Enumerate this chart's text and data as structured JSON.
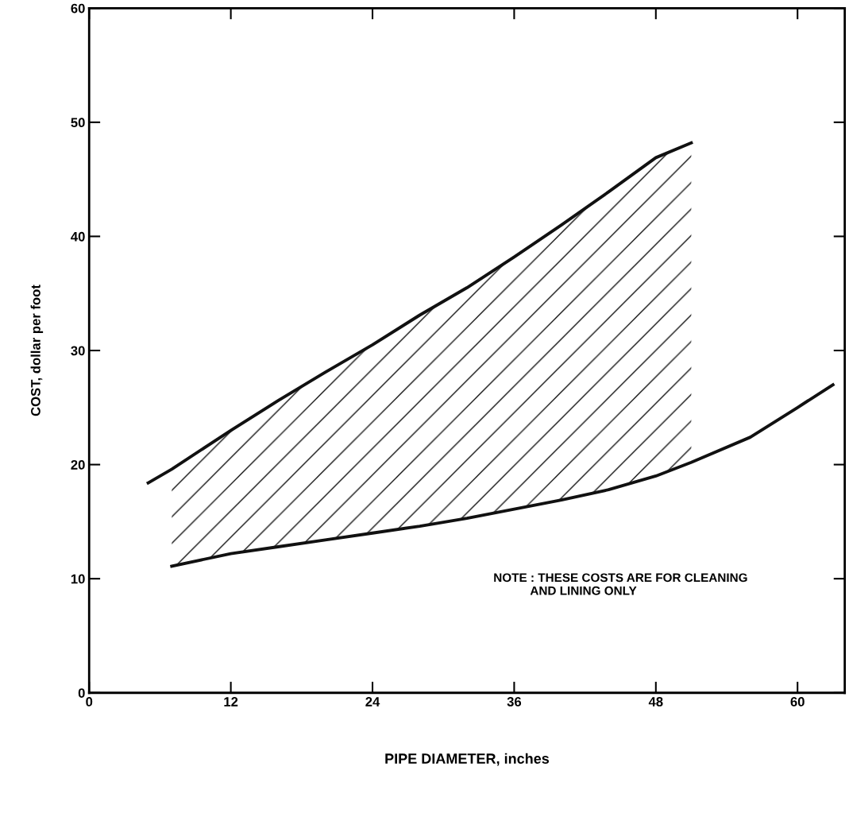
{
  "chart_data": {
    "type": "line",
    "xlabel": "PIPE DIAMETER, inches",
    "ylabel": "COST, dollar per foot",
    "x": [
      5,
      7,
      12,
      16,
      20,
      24,
      28,
      32,
      36,
      40,
      44,
      48,
      51,
      56,
      60,
      63
    ],
    "series": [
      {
        "color": "#111111",
        "values": [
          18.4,
          19.6,
          23.0,
          25.6,
          28.1,
          30.5,
          33.1,
          35.5,
          38.2,
          41.0,
          43.9,
          46.9,
          48.2,
          null,
          null,
          null
        ],
        "lower": [
          null,
          11.1,
          12.2,
          12.8,
          13.4,
          14.0,
          14.6,
          15.3,
          16.1,
          16.9,
          17.8,
          19.0,
          20.2,
          null,
          null,
          null
        ],
        "upper": [
          null,
          19.6,
          23.0,
          25.6,
          28.1,
          30.5,
          33.1,
          35.5,
          38.2,
          41.0,
          43.9,
          46.9,
          48.2,
          null,
          null,
          null
        ]
      },
      {
        "color": "#111111",
        "values": [
          null,
          11.1,
          12.2,
          12.8,
          13.4,
          14.0,
          14.6,
          15.3,
          16.1,
          16.9,
          17.8,
          19.0,
          20.2,
          22.4,
          25.0,
          27.0
        ]
      }
    ],
    "xlim": [
      0,
      64
    ],
    "ylim": [
      0,
      60
    ],
    "xticks": [
      0,
      12,
      24,
      36,
      48,
      60
    ],
    "yticks": [
      0,
      10,
      20,
      30,
      40,
      50,
      60
    ],
    "grid": false,
    "legend": false,
    "marker": "none",
    "line_style": "solid",
    "annotations": [
      "NOTE : THESE COSTS ARE FOR CLEANING\n           AND LINING ONLY"
    ]
  }
}
